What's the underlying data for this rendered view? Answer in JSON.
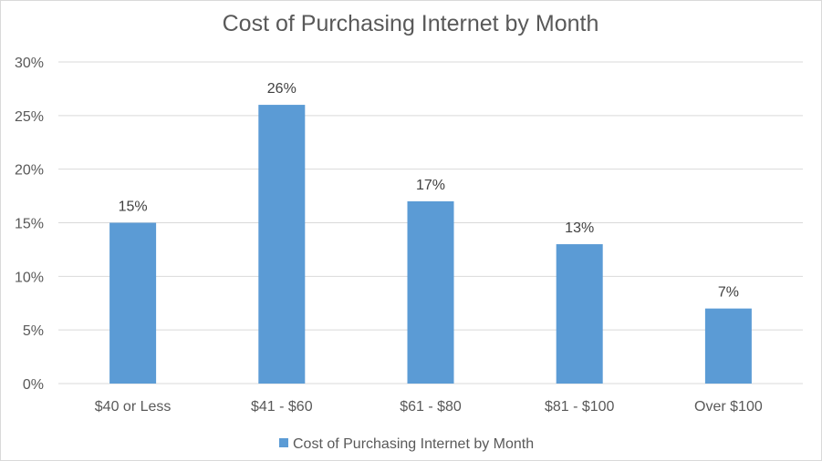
{
  "chart_data": {
    "type": "bar",
    "title": "Cost of Purchasing Internet by Month",
    "categories": [
      "$40 or Less",
      "$41 - $60",
      "$61 - $80",
      "$81 - $100",
      "Over $100"
    ],
    "series": [
      {
        "name": "Cost of Purchasing Internet by Month",
        "values": [
          15,
          26,
          17,
          13,
          7
        ],
        "data_labels": [
          "15%",
          "26%",
          "17%",
          "13%",
          "7%"
        ],
        "color": "#5b9bd5"
      }
    ],
    "ylim": [
      0,
      30
    ],
    "yticks": [
      0,
      5,
      10,
      15,
      20,
      25,
      30
    ],
    "ytick_labels": [
      "0%",
      "5%",
      "10%",
      "15%",
      "20%",
      "25%",
      "30%"
    ],
    "grid": true,
    "gridline_color": "#d9d9d9",
    "legend_position": "bottom",
    "xlabel": "",
    "ylabel": ""
  }
}
